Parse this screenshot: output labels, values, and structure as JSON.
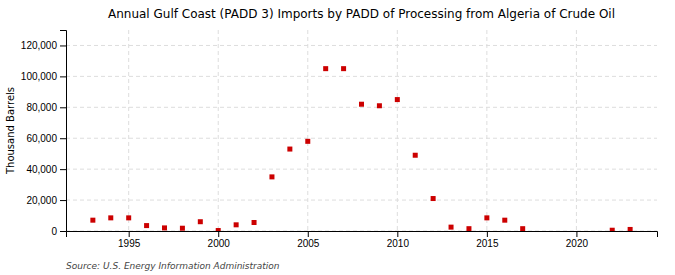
{
  "chart_data": {
    "type": "scatter",
    "title": "Annual Gulf Coast (PADD 3) Imports by PADD of Processing from Algeria of Crude Oil",
    "ylabel": "Thousand Barrels",
    "source": "Source: U.S. Energy Information Administration",
    "x": [
      1993,
      1994,
      1995,
      1996,
      1997,
      1998,
      1999,
      2000,
      2001,
      2002,
      2003,
      2004,
      2005,
      2006,
      2007,
      2008,
      2009,
      2010,
      2011,
      2012,
      2013,
      2014,
      2015,
      2016,
      2017,
      2022,
      2023
    ],
    "values": [
      7000,
      8500,
      8500,
      3500,
      2000,
      1800,
      6000,
      300,
      4000,
      5500,
      35000,
      53000,
      58000,
      105000,
      105000,
      82000,
      81000,
      85000,
      49000,
      21000,
      2500,
      1500,
      8500,
      7000,
      1500,
      500,
      1000
    ],
    "color": "#cc0000",
    "marker": "square",
    "xlim": [
      1991.5,
      2024.5
    ],
    "ylim": [
      0,
      130000
    ],
    "xticks": [
      1995,
      2000,
      2005,
      2010,
      2015,
      2020
    ],
    "yticks": [
      0,
      {
        "value": 20000,
        "label": "20,000"
      },
      {
        "value": 40000,
        "label": "40,000"
      },
      {
        "value": 60000,
        "label": "60,000"
      },
      {
        "value": 80000,
        "label": "80,000"
      },
      {
        "value": 100000,
        "label": "100,000"
      },
      {
        "value": 120000,
        "label": "120,000"
      }
    ],
    "grid": true
  }
}
